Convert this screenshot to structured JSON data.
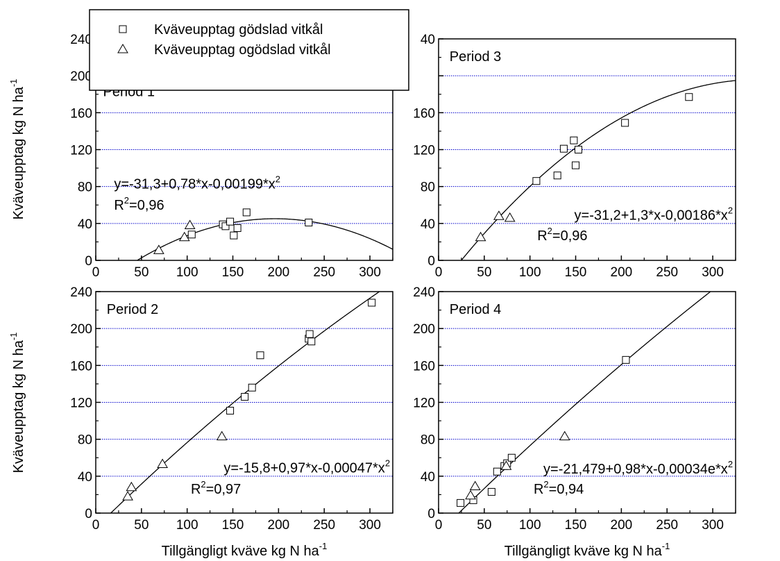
{
  "figure": {
    "ylabel_main": "Kväveupptag kg N ha",
    "ylabel_sup": "-1",
    "xlabel_main": "Tillgängligt kväve kg N ha",
    "xlabel_sup": "-1"
  },
  "legend": {
    "placement": "top-left",
    "entries": [
      {
        "marker": "square",
        "label": "Kväveupptag gödslad vitkål"
      },
      {
        "marker": "triangle",
        "label": "Kväveupptag ogödslad vitkål"
      }
    ]
  },
  "colors": {
    "grid": "#0000cc",
    "marker": "#000000",
    "curve": "#000000"
  },
  "chart_data": [
    {
      "type": "scatter",
      "panel": "top-left",
      "period_label": "Period 1",
      "equation": "y=-31,3+0,78*x-0,00199*x",
      "equation_exp": "2",
      "r2_main": "R",
      "r2_exp": "2",
      "r2_value": "=0,96",
      "xlim": [
        0,
        325
      ],
      "ylim": [
        0,
        240
      ],
      "xticks": [
        "0",
        "50",
        "100",
        "150",
        "200",
        "250",
        "300"
      ],
      "yticks": [
        "0",
        "40",
        "80",
        "120",
        "160",
        "200",
        "240"
      ],
      "grid": true,
      "fit": {
        "a": -31.3,
        "b": 0.78,
        "c": -0.00199
      },
      "series": [
        {
          "marker": "square",
          "x": [
            105,
            139,
            142,
            147,
            151,
            155,
            165,
            233
          ],
          "y": [
            28,
            39,
            37,
            42,
            27,
            35,
            52,
            41
          ]
        },
        {
          "marker": "triangle",
          "x": [
            69,
            97,
            103
          ],
          "y": [
            11,
            25,
            38
          ]
        }
      ]
    },
    {
      "type": "scatter",
      "panel": "top-right",
      "period_label": "Period 3",
      "equation": "y=-31,2+1,3*x-0,00186*x",
      "equation_exp": "2",
      "r2_main": "R",
      "r2_exp": "2",
      "r2_value": "=0,96",
      "xlim": [
        0,
        325
      ],
      "ylim": [
        0,
        240
      ],
      "xticks": [
        "0",
        "50",
        "100",
        "150",
        "200",
        "250",
        "300"
      ],
      "yticks": [
        "0",
        "40",
        "80",
        "120",
        "160",
        "",
        "40"
      ],
      "grid": true,
      "fit": {
        "a": -31.2,
        "b": 1.3,
        "c": -0.00186
      },
      "series": [
        {
          "marker": "square",
          "x": [
            107,
            130,
            137,
            148,
            150,
            153,
            204,
            274
          ],
          "y": [
            86,
            92,
            121,
            130,
            103,
            120,
            149,
            177
          ]
        },
        {
          "marker": "triangle",
          "x": [
            46,
            66,
            78
          ],
          "y": [
            25,
            48,
            46
          ]
        }
      ]
    },
    {
      "type": "scatter",
      "panel": "bottom-left",
      "period_label": "Period 2",
      "equation": "y=-15,8+0,97*x-0,00047*x",
      "equation_exp": "2",
      "r2_main": "R",
      "r2_exp": "2",
      "r2_value": "=0,97",
      "xlim": [
        0,
        325
      ],
      "ylim": [
        0,
        240
      ],
      "xticks": [
        "0",
        "50",
        "100",
        "150",
        "200",
        "250",
        "300"
      ],
      "yticks": [
        "0",
        "40",
        "80",
        "120",
        "160",
        "200",
        "240"
      ],
      "grid": true,
      "fit": {
        "a": -15.8,
        "b": 0.97,
        "c": -0.00047
      },
      "series": [
        {
          "marker": "square",
          "x": [
            147,
            163,
            171,
            180,
            233,
            234,
            236,
            302
          ],
          "y": [
            111,
            126,
            136,
            171,
            189,
            194,
            186,
            228
          ]
        },
        {
          "marker": "triangle",
          "x": [
            35,
            39,
            73,
            138
          ],
          "y": [
            18,
            28,
            53,
            83
          ]
        }
      ]
    },
    {
      "type": "scatter",
      "panel": "bottom-right",
      "period_label": "Period 4",
      "equation": "y=-21,479+0,98*x-0,00034e*x",
      "equation_exp": "2",
      "r2_main": "R",
      "r2_exp": "2",
      "r2_value": "=0,94",
      "xlim": [
        0,
        325
      ],
      "ylim": [
        0,
        240
      ],
      "xticks": [
        "0",
        "50",
        "100",
        "150",
        "200",
        "250",
        "300"
      ],
      "yticks": [
        "0",
        "40",
        "80",
        "120",
        "160",
        "200",
        "240"
      ],
      "grid": true,
      "fit": {
        "a": -21.479,
        "b": 0.98,
        "c": -0.00034
      },
      "series": [
        {
          "marker": "square",
          "x": [
            24,
            38,
            58,
            64,
            72,
            75,
            80,
            205
          ],
          "y": [
            11,
            14,
            23,
            45,
            51,
            54,
            60,
            166
          ]
        },
        {
          "marker": "triangle",
          "x": [
            35,
            40,
            74,
            138
          ],
          "y": [
            19,
            29,
            51,
            83
          ]
        }
      ]
    }
  ]
}
